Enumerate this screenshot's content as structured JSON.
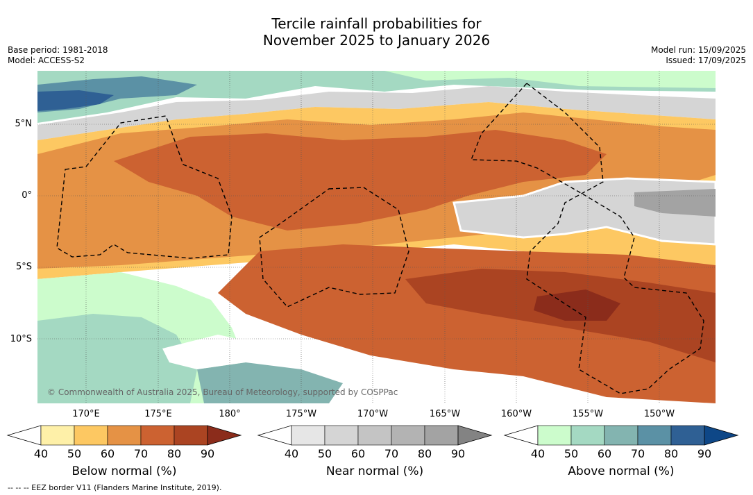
{
  "title_line1": "Tercile rainfall probabilities for",
  "title_line2": "November 2025 to January 2026",
  "base_period": "Base period: 1981-2018",
  "model": "Model: ACCESS-S2",
  "model_run": "Model run: 15/09/2025",
  "issued": "Issued: 17/09/2025",
  "copyright": "© Commonwealth of Australia 2025, Bureau of Meteorology, supported by COSPPac",
  "footnote": "-- -- -- EEZ border V11 (Flanders Marine Institute, 2019).",
  "lat_labels": [
    "5°N",
    "0°",
    "5°S",
    "10°S"
  ],
  "lon_labels": [
    "170°E",
    "175°E",
    "180°",
    "175°W",
    "170°W",
    "165°W",
    "160°W",
    "155°W",
    "150°W"
  ],
  "colorbars": [
    {
      "label": "Below normal (%)",
      "ticks": [
        "40",
        "50",
        "60",
        "70",
        "80",
        "90"
      ],
      "colors": [
        "#ffffff",
        "#fef0a8",
        "#fdc862",
        "#e59245",
        "#cc6231",
        "#ab4422",
        "#8b2c1b"
      ]
    },
    {
      "label": "Near normal (%)",
      "ticks": [
        "40",
        "50",
        "60",
        "70",
        "80",
        "90"
      ],
      "colors": [
        "#ffffff",
        "#e6e6e6",
        "#d5d5d5",
        "#c4c4c4",
        "#b3b3b3",
        "#a3a3a3",
        "#838383"
      ]
    },
    {
      "label": "Above normal (%)",
      "ticks": [
        "40",
        "50",
        "60",
        "70",
        "80",
        "90"
      ],
      "colors": [
        "#ffffff",
        "#ccfccc",
        "#a4d9c2",
        "#83b4b0",
        "#5b91a5",
        "#2f6094",
        "#0e4787"
      ]
    }
  ]
}
